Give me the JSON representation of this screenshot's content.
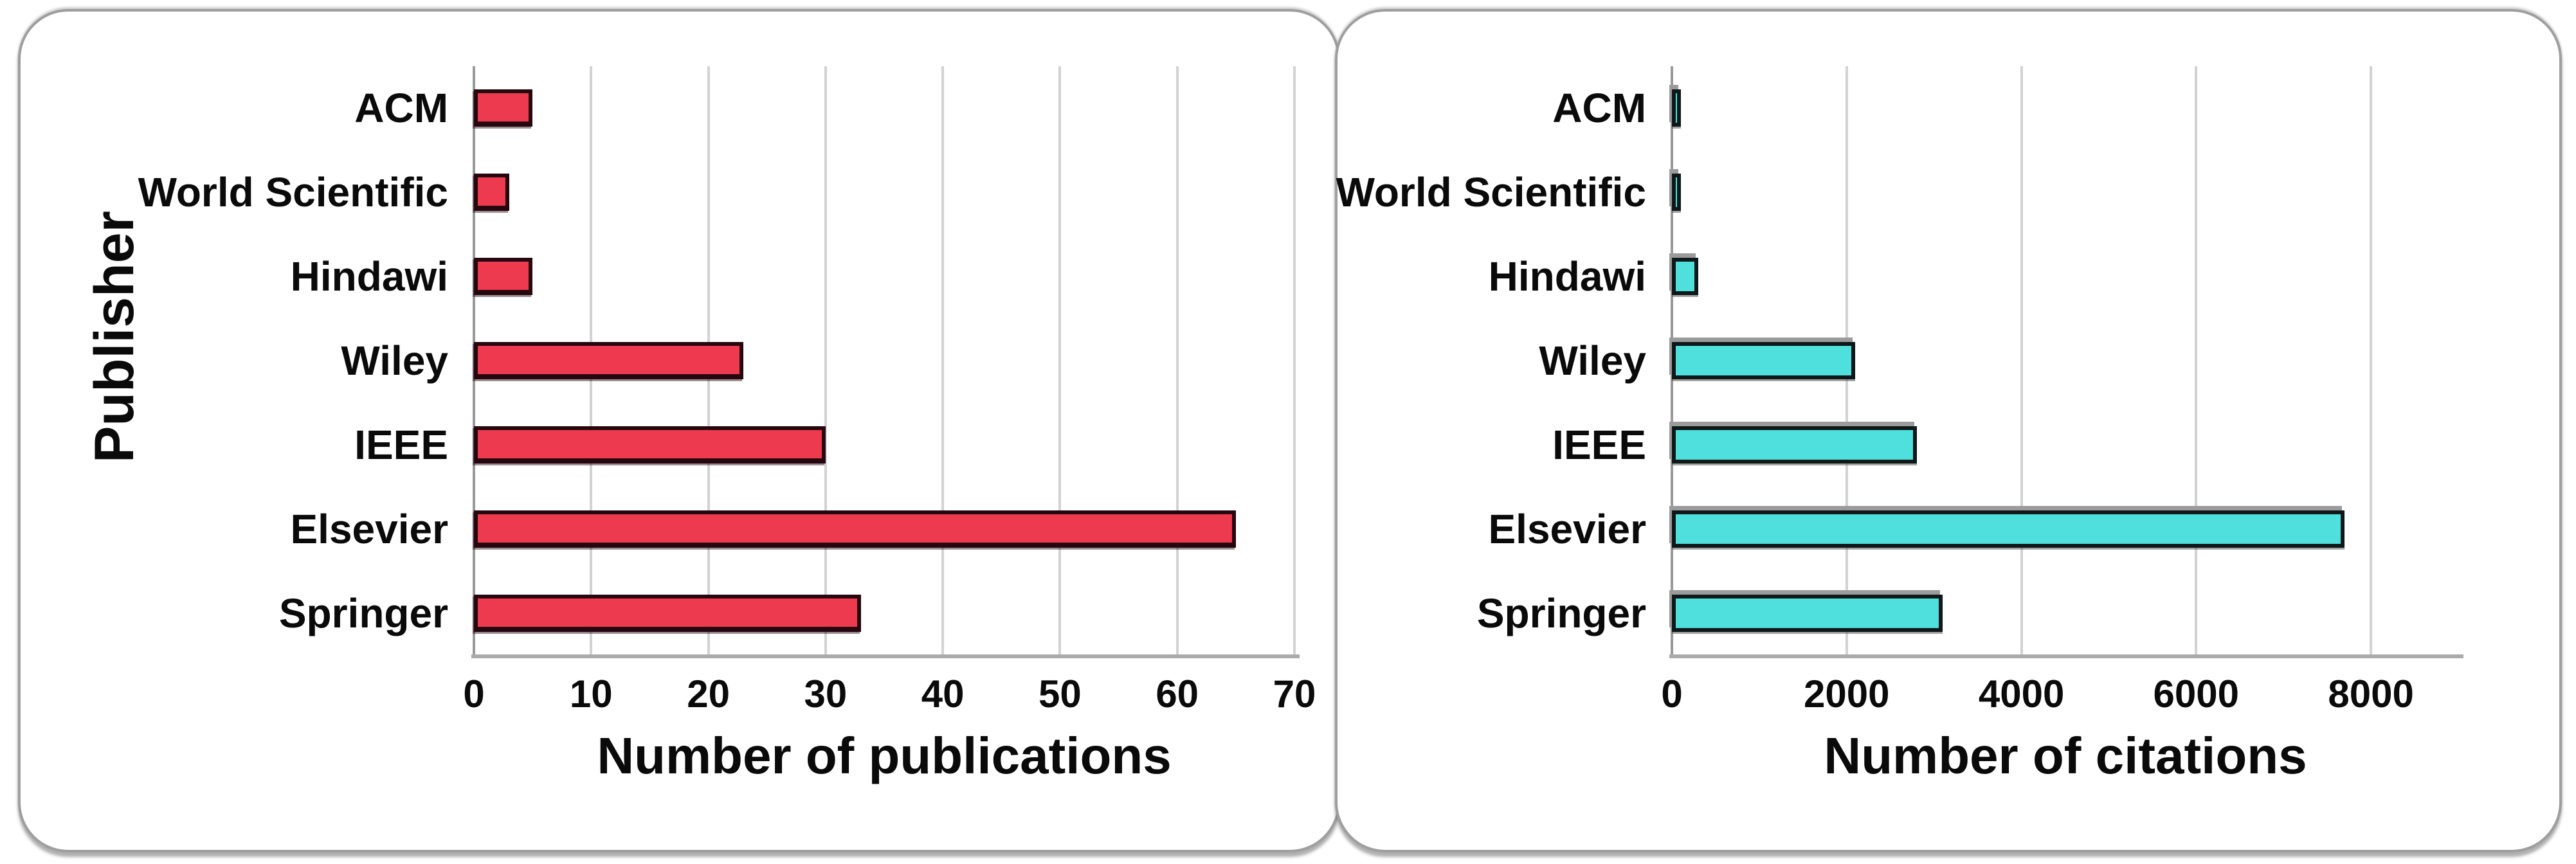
{
  "page": {
    "background": "#ffffff",
    "panel_border_color": "#9e9e9e",
    "text_color": "#0a0a0a",
    "gridline_color": "#d2d2d2",
    "axis_line_color": "#9a9a9a"
  },
  "chart_data": [
    {
      "type": "bar",
      "orientation": "horizontal",
      "title": "",
      "xlabel": "Number of publications",
      "ylabel": "Publisher",
      "categories": [
        "ACM",
        "World Scientific",
        "Hindawi",
        "Wiley",
        "IEEE",
        "Elsevier",
        "Springer"
      ],
      "values": [
        5,
        3,
        5,
        23,
        30,
        65,
        33
      ],
      "xlim": [
        0,
        70
      ],
      "xticks": [
        0,
        10,
        20,
        30,
        40,
        50,
        60,
        70
      ],
      "grid": true,
      "legend": false,
      "bar_color": "#ee3a4e",
      "bar_border_color": "#26070f"
    },
    {
      "type": "bar",
      "orientation": "horizontal",
      "title": "",
      "xlabel": "Number of citations",
      "ylabel": "",
      "categories": [
        "ACM",
        "World Scientific",
        "Hindawi",
        "Wiley",
        "IEEE",
        "Elsevier",
        "Springer"
      ],
      "values": [
        100,
        100,
        300,
        2100,
        2800,
        7700,
        3100
      ],
      "xlim": [
        0,
        9000
      ],
      "xticks": [
        0,
        2000,
        4000,
        6000,
        8000
      ],
      "grid": true,
      "legend": false,
      "bar_color": "#4fe0de",
      "bar_border_color": "#0e1818"
    }
  ]
}
